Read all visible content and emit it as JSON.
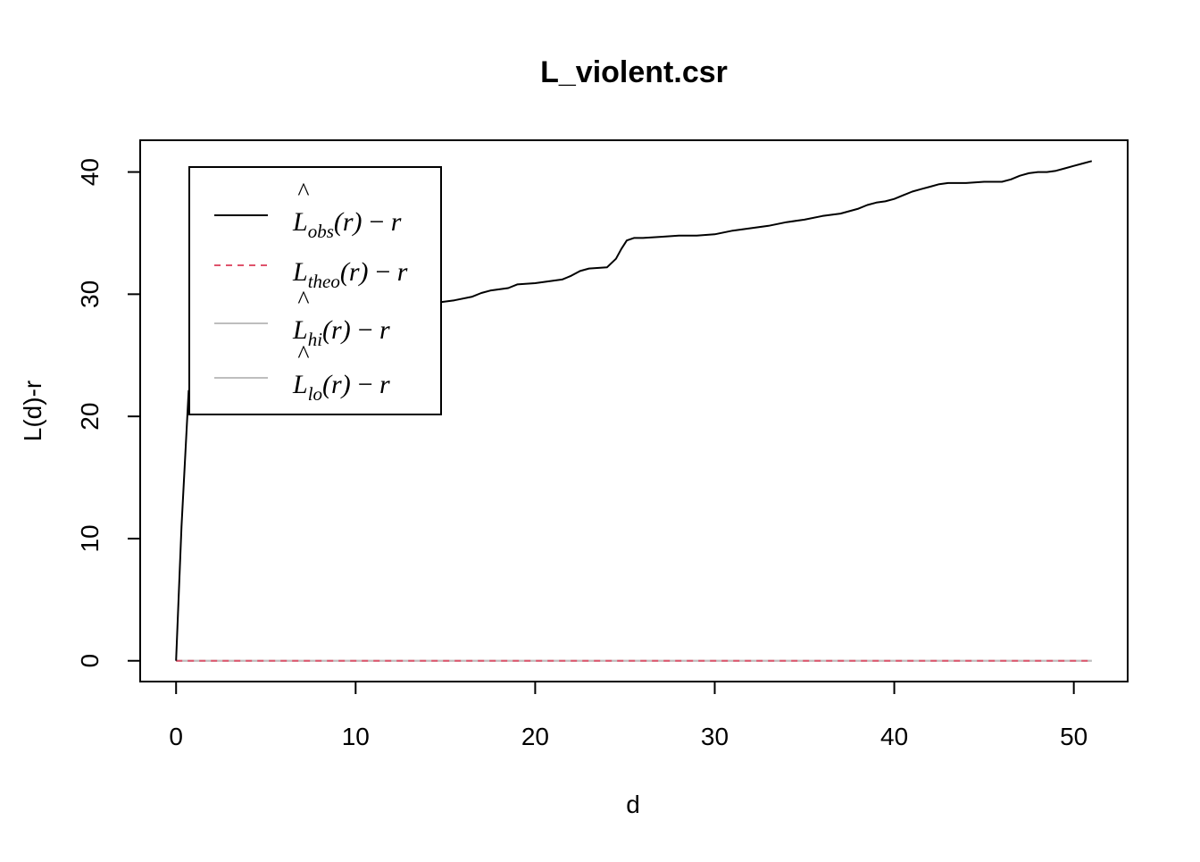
{
  "chart_data": {
    "type": "line",
    "title": "L_violent.csr",
    "xlabel": "d",
    "ylabel": "L(d)-r",
    "xlim": [
      -2,
      53
    ],
    "ylim": [
      -1.7,
      42.6
    ],
    "x_ticks": [
      0,
      10,
      20,
      30,
      40,
      50
    ],
    "y_ticks": [
      0,
      10,
      20,
      30,
      40
    ],
    "legend_position": "top-left",
    "series": [
      {
        "key": "obs",
        "legend": {
          "base": "L",
          "hat": "^",
          "sub": "obs",
          "tail": "(r) − r"
        },
        "color": "#000000",
        "dash": "",
        "x": [
          0,
          0.3,
          0.7,
          1.0,
          1.4,
          1.8,
          2.2,
          2.6,
          3.0,
          3.4,
          3.8,
          4.3,
          4.7,
          5.1,
          5.5,
          6.0,
          6.4,
          6.8,
          7.3,
          7.7,
          8.2,
          8.7,
          9.2,
          9.8,
          10.5,
          11.5,
          12.5,
          13.5,
          14.5,
          15.5,
          16.5,
          17.0,
          17.5,
          18.5,
          19.0,
          20.0,
          21.0,
          21.5,
          22.0,
          22.5,
          23.0,
          24.0,
          24.5,
          24.8,
          25.1,
          25.5,
          26.0,
          27.0,
          28.0,
          29.0,
          30.0,
          31.0,
          32.0,
          33.0,
          34.0,
          35.0,
          36.0,
          37.0,
          38.0,
          38.5,
          39.0,
          39.5,
          40.0,
          40.5,
          41.0,
          41.5,
          42.0,
          42.5,
          43.0,
          44.0,
          45.0,
          46.0,
          46.5,
          47.0,
          47.5,
          48.0,
          48.5,
          49.0,
          49.5,
          50.0,
          50.5,
          51.0
        ],
        "y": [
          0,
          11.0,
          22.1,
          22.0,
          21.9,
          22.0,
          22.4,
          22.8,
          22.8,
          22.7,
          22.8,
          23.5,
          23.8,
          24.1,
          25.0,
          25.9,
          26.4,
          26.7,
          26.9,
          27.4,
          27.9,
          28.1,
          28.3,
          28.4,
          28.6,
          28.8,
          28.9,
          29.2,
          29.3,
          29.5,
          29.8,
          30.1,
          30.3,
          30.5,
          30.8,
          30.9,
          31.1,
          31.2,
          31.5,
          31.9,
          32.1,
          32.2,
          32.9,
          33.7,
          34.4,
          34.6,
          34.6,
          34.7,
          34.8,
          34.8,
          34.9,
          35.2,
          35.4,
          35.6,
          35.9,
          36.1,
          36.4,
          36.6,
          37.0,
          37.3,
          37.5,
          37.6,
          37.8,
          38.1,
          38.4,
          38.6,
          38.8,
          39.0,
          39.1,
          39.1,
          39.2,
          39.2,
          39.4,
          39.7,
          39.9,
          40.0,
          40.0,
          40.1,
          40.3,
          40.5,
          40.7,
          40.9
        ]
      },
      {
        "key": "theo",
        "legend": {
          "base": "L",
          "hat": "",
          "sub": "theo",
          "tail": "(r) − r"
        },
        "color": "#DF536B",
        "dash": "7,6",
        "x": [
          0,
          51
        ],
        "y": [
          0,
          0
        ]
      },
      {
        "key": "hi",
        "legend": {
          "base": "L",
          "hat": "^",
          "sub": "hi",
          "tail": "(r) − r"
        },
        "color": "#BEBEBE",
        "dash": "",
        "x": [
          0,
          51
        ],
        "y": [
          0,
          0
        ]
      },
      {
        "key": "lo",
        "legend": {
          "base": "L",
          "hat": "^",
          "sub": "lo",
          "tail": "(r) − r"
        },
        "color": "#BEBEBE",
        "dash": "",
        "x": [
          0,
          51
        ],
        "y": [
          0,
          0
        ]
      }
    ]
  }
}
